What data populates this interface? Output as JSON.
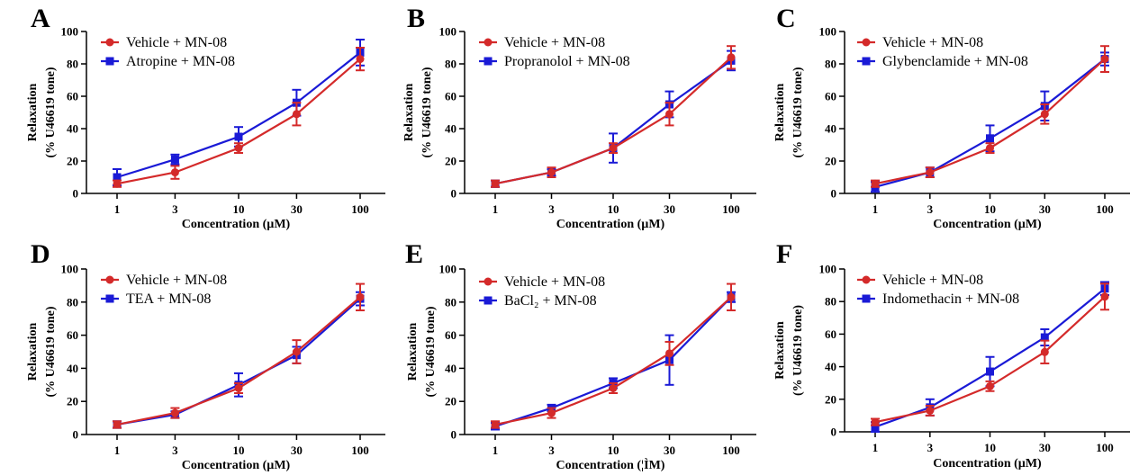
{
  "colors": {
    "vehicle": "#d42a2a",
    "treatment": "#1a1ad6",
    "axis": "#000000"
  },
  "chart_data": [
    {
      "type": "line",
      "panel": "A",
      "x": [
        1,
        3,
        10,
        30,
        100
      ],
      "x_tick_labels": [
        "1",
        "3",
        "10",
        "30",
        "100"
      ],
      "y_ticks": [
        0,
        20,
        40,
        60,
        80,
        100
      ],
      "ylim": [
        0,
        100
      ],
      "xlabel": "Concentration (µM)",
      "ylabel": [
        "Relaxation",
        "(% U46619 tone)"
      ],
      "legend": "top-left",
      "series": [
        {
          "name": "Vehicle + MN-08",
          "marker": "circle",
          "color": "#d42a2a",
          "values": [
            6,
            13,
            28,
            49,
            83
          ],
          "errors": [
            2,
            4,
            3,
            7,
            7
          ]
        },
        {
          "name": "Atropine + MN-08",
          "marker": "square",
          "color": "#1a1ad6",
          "values": [
            10,
            21,
            35,
            56,
            87
          ],
          "errors": [
            5,
            3,
            6,
            8,
            8
          ]
        }
      ]
    },
    {
      "type": "line",
      "panel": "B",
      "x": [
        1,
        3,
        10,
        30,
        100
      ],
      "x_tick_labels": [
        "1",
        "3",
        "10",
        "30",
        "100"
      ],
      "y_ticks": [
        0,
        20,
        40,
        60,
        80,
        100
      ],
      "ylim": [
        0,
        100
      ],
      "xlabel": "Concentration (µM)",
      "ylabel": [
        "Relaxation",
        "(% U46619 tone)"
      ],
      "legend": "top-left",
      "series": [
        {
          "name": "Vehicle + MN-08",
          "marker": "circle",
          "color": "#d42a2a",
          "values": [
            6,
            13,
            28,
            49,
            84
          ],
          "errors": [
            2,
            3,
            3,
            7,
            7
          ]
        },
        {
          "name": "Propranolol + MN-08",
          "marker": "square",
          "color": "#1a1ad6",
          "values": [
            6,
            13,
            28,
            55,
            82
          ],
          "errors": [
            2,
            2,
            9,
            8,
            6
          ]
        }
      ]
    },
    {
      "type": "line",
      "panel": "C",
      "x": [
        1,
        3,
        10,
        30,
        100
      ],
      "x_tick_labels": [
        "1",
        "3",
        "10",
        "30",
        "100"
      ],
      "y_ticks": [
        0,
        20,
        40,
        60,
        80,
        100
      ],
      "ylim": [
        0,
        100
      ],
      "xlabel": "Concentration (µM)",
      "ylabel": [
        "Relaxation",
        "(% U46619 tone)"
      ],
      "legend": "top-left",
      "series": [
        {
          "name": "Vehicle + MN-08",
          "marker": "circle",
          "color": "#d42a2a",
          "values": [
            6,
            13,
            28,
            49,
            83
          ],
          "errors": [
            2,
            3,
            3,
            6,
            8
          ]
        },
        {
          "name": "Glybenclamide + MN-08",
          "marker": "square",
          "color": "#1a1ad6",
          "values": [
            4,
            13,
            34,
            54,
            83
          ],
          "errors": [
            3,
            3,
            8,
            9,
            4
          ]
        }
      ]
    },
    {
      "type": "line",
      "panel": "D",
      "x": [
        1,
        3,
        10,
        30,
        100
      ],
      "x_tick_labels": [
        "1",
        "3",
        "10",
        "30",
        "100"
      ],
      "y_ticks": [
        0,
        20,
        40,
        60,
        80,
        100
      ],
      "ylim": [
        0,
        100
      ],
      "xlabel": "Concentration (µM)",
      "ylabel": [
        "Relaxation",
        "(% U46619 tone)"
      ],
      "legend": "top-left",
      "series": [
        {
          "name": "Vehicle + MN-08",
          "marker": "circle",
          "color": "#d42a2a",
          "values": [
            6,
            13,
            28,
            50,
            83
          ],
          "errors": [
            2,
            3,
            3,
            7,
            8
          ]
        },
        {
          "name": "TEA + MN-08",
          "marker": "square",
          "color": "#1a1ad6",
          "values": [
            6,
            12,
            30,
            48,
            82
          ],
          "errors": [
            2,
            2,
            7,
            5,
            4
          ]
        }
      ]
    },
    {
      "type": "line",
      "panel": "E",
      "x": [
        1,
        3,
        10,
        30,
        100
      ],
      "x_tick_labels": [
        "1",
        "3",
        "10",
        "30",
        "100"
      ],
      "y_ticks": [
        0,
        20,
        40,
        60,
        80,
        100
      ],
      "ylim": [
        0,
        100
      ],
      "xlabel": "Concentration (¦ÌM)",
      "ylabel": [
        "Relaxation",
        "(% U46619 tone)"
      ],
      "legend": "top-left",
      "series": [
        {
          "name": "Vehicle + MN-08",
          "marker": "circle",
          "color": "#d42a2a",
          "values": [
            6,
            13,
            28,
            49,
            83
          ],
          "errors": [
            2,
            3,
            3,
            7,
            8
          ]
        },
        {
          "name": "BaCl₂ + MN-08",
          "marker": "square",
          "color": "#1a1ad6",
          "values": [
            5,
            16,
            31,
            45,
            83
          ],
          "errors": [
            2,
            2,
            3,
            15,
            3
          ]
        }
      ]
    },
    {
      "type": "line",
      "panel": "F",
      "x": [
        1,
        3,
        10,
        30,
        100
      ],
      "x_tick_labels": [
        "1",
        "3",
        "10",
        "30",
        "100"
      ],
      "y_ticks": [
        0,
        20,
        40,
        60,
        80,
        100
      ],
      "ylim": [
        0,
        100
      ],
      "xlabel": "Concentration (µM)",
      "ylabel": [
        "Relaxation",
        "(% U46619 tone)"
      ],
      "legend": "top-left",
      "series": [
        {
          "name": "Vehicle + MN-08",
          "marker": "circle",
          "color": "#d42a2a",
          "values": [
            6,
            13,
            28,
            49,
            83
          ],
          "errors": [
            2,
            3,
            3,
            7,
            8
          ]
        },
        {
          "name": "Indomethacin + MN-08",
          "marker": "square",
          "color": "#1a1ad6",
          "values": [
            3,
            15,
            37,
            58,
            88
          ],
          "errors": [
            3,
            5,
            9,
            5,
            4
          ]
        }
      ]
    }
  ]
}
